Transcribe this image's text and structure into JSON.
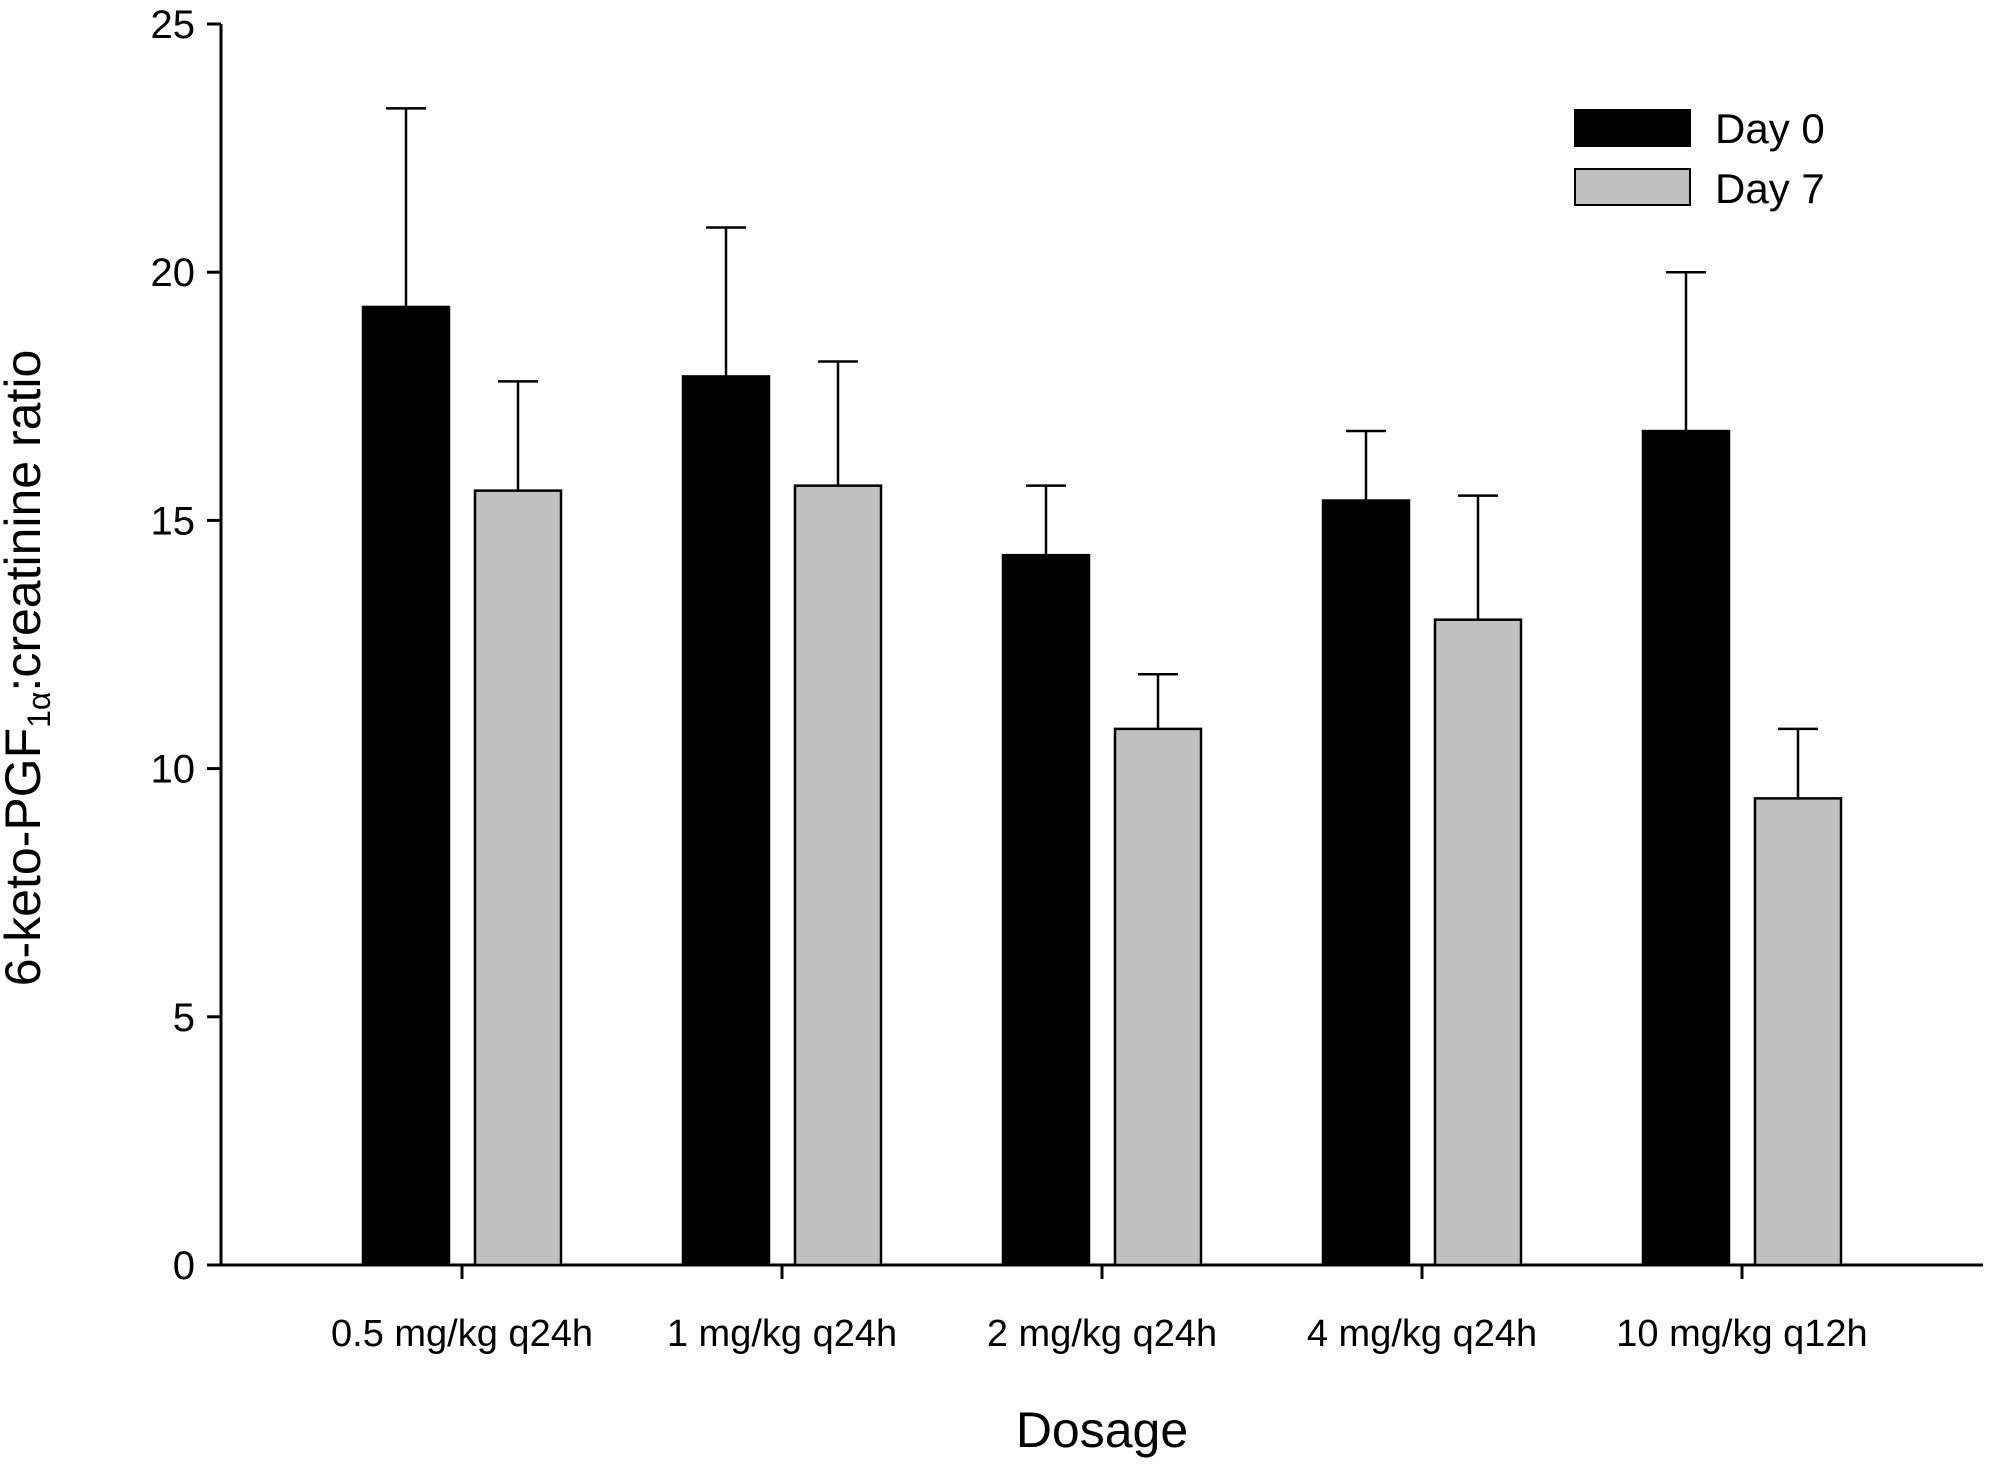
{
  "chart_data": {
    "type": "bar",
    "title": "",
    "xlabel": "Dosage",
    "ylabel": {
      "prefix": "6-keto-PGF",
      "subscript": "1α",
      "suffix": ":creatinine ratio"
    },
    "ylim": [
      0,
      25
    ],
    "yticks": [
      "0",
      "5",
      "10",
      "15",
      "20",
      "25"
    ],
    "categories": [
      "0.5 mg/kg q24h",
      "1 mg/kg q24h",
      "2 mg/kg q24h",
      "4 mg/kg q24h",
      "10 mg/kg q12h"
    ],
    "series": [
      {
        "name": "Day 0",
        "color": "#000000",
        "values": [
          19.3,
          17.9,
          14.3,
          15.4,
          16.8
        ],
        "error_upper": [
          23.3,
          20.9,
          15.7,
          16.8,
          20.0
        ]
      },
      {
        "name": "Day 7",
        "color": "#c0c0c0",
        "values": [
          15.6,
          15.7,
          10.8,
          13.0,
          9.4
        ],
        "error_upper": [
          17.8,
          18.2,
          11.9,
          15.5,
          10.8
        ]
      }
    ],
    "legend_position": "top-right",
    "grid": false
  }
}
